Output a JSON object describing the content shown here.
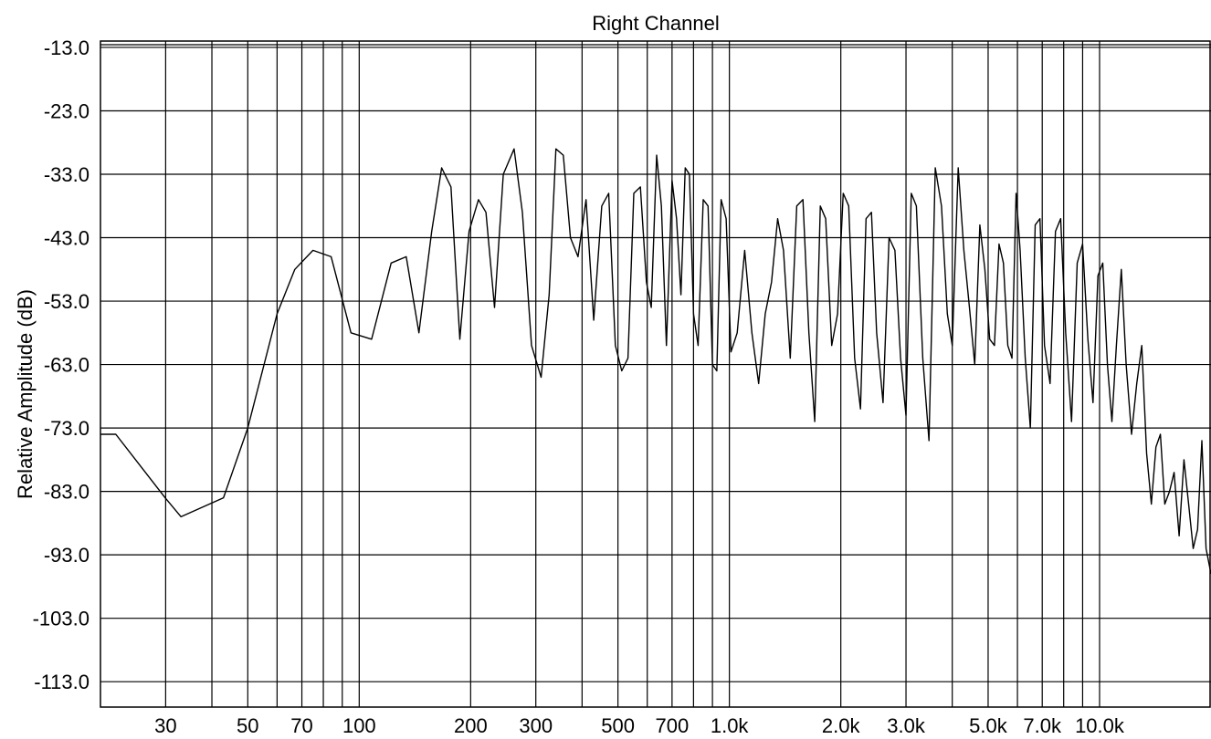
{
  "chart_data": {
    "type": "line",
    "title": "Right Channel",
    "ylabel": "Relative Amplitude (dB)",
    "xlabel": "",
    "xscale": "log",
    "xlim": [
      20,
      20000
    ],
    "ylim": [
      -117.0,
      -12.0
    ],
    "yticks": [
      -13.0,
      -23.0,
      -33.0,
      -43.0,
      -53.0,
      -63.0,
      -73.0,
      -83.0,
      -93.0,
      -103.0,
      -113.0
    ],
    "ytick_labels": [
      "-13.0",
      "-23.0",
      "-33.0",
      "-43.0",
      "-53.0",
      "-63.0",
      "-73.0",
      "-83.0",
      "-93.0",
      "-103.0",
      "-113.0"
    ],
    "xgrid": [
      30,
      40,
      50,
      60,
      70,
      80,
      90,
      100,
      200,
      300,
      400,
      500,
      600,
      700,
      800,
      900,
      1000,
      2000,
      3000,
      4000,
      5000,
      6000,
      7000,
      8000,
      9000,
      10000
    ],
    "xticks": [
      {
        "value": 30,
        "label": "30"
      },
      {
        "value": 50,
        "label": "50"
      },
      {
        "value": 70,
        "label": "70"
      },
      {
        "value": 100,
        "label": "100"
      },
      {
        "value": 200,
        "label": "200"
      },
      {
        "value": 300,
        "label": "300"
      },
      {
        "value": 500,
        "label": "500"
      },
      {
        "value": 700,
        "label": "700"
      },
      {
        "value": 1000,
        "label": "1.0k"
      },
      {
        "value": 2000,
        "label": "2.0k"
      },
      {
        "value": 3000,
        "label": "3.0k"
      },
      {
        "value": 5000,
        "label": "5.0k"
      },
      {
        "value": 7000,
        "label": "7.0k"
      },
      {
        "value": 10000,
        "label": "10.0k"
      }
    ],
    "grid": true,
    "series": [
      {
        "x": [
          20,
          22,
          29.9,
          33,
          43,
          50,
          60,
          67,
          75,
          84,
          95,
          108,
          122,
          134,
          145,
          157,
          167,
          177,
          187,
          198,
          210,
          220,
          232,
          245,
          262,
          276,
          292,
          310,
          326,
          340,
          356,
          372,
          390,
          410,
          430,
          452,
          472,
          492,
          512,
          532,
          552,
          575,
          597,
          615,
          636,
          655,
          676,
          700,
          720,
          740,
          760,
          780,
          800,
          823,
          850,
          876,
          900,
          925,
          950,
          980,
          1010,
          1050,
          1100,
          1150,
          1200,
          1250,
          1300,
          1350,
          1400,
          1460,
          1520,
          1580,
          1640,
          1700,
          1760,
          1820,
          1890,
          1960,
          2030,
          2100,
          2180,
          2260,
          2340,
          2420,
          2500,
          2600,
          2700,
          2800,
          2900,
          3000,
          3100,
          3200,
          3330,
          3460,
          3600,
          3740,
          3880,
          4000,
          4150,
          4300,
          4450,
          4600,
          4750,
          4900,
          5050,
          5200,
          5350,
          5500,
          5650,
          5800,
          5950,
          6100,
          6300,
          6500,
          6700,
          6900,
          7100,
          7350,
          7600,
          7850,
          8100,
          8400,
          8700,
          9000,
          9300,
          9600,
          9900,
          10200,
          10500,
          10800,
          11100,
          11450,
          11800,
          12200,
          12600,
          13000,
          13400,
          13800,
          14200,
          14600,
          15000,
          15450,
          15900,
          16400,
          16900,
          17400,
          17900,
          18400,
          18900,
          19400,
          20000
        ],
        "y": [
          -74,
          -74,
          -84,
          -87,
          -84,
          -73,
          -55,
          -48,
          -45,
          -46,
          -58,
          -59,
          -47,
          -46,
          -58,
          -42,
          -32,
          -35,
          -59,
          -42,
          -37,
          -39,
          -54,
          -33,
          -29,
          -39,
          -60,
          -65,
          -52,
          -29,
          -30,
          -43,
          -46,
          -37,
          -56,
          -38,
          -36,
          -60,
          -64,
          -62,
          -36,
          -35,
          -50,
          -54,
          -30,
          -38,
          -60,
          -34,
          -40,
          -52,
          -32,
          -33,
          -55,
          -60,
          -37,
          -38,
          -63,
          -64,
          -37,
          -40,
          -61,
          -58,
          -45,
          -58,
          -66,
          -55,
          -50,
          -40,
          -45,
          -62,
          -38,
          -37,
          -58,
          -72,
          -38,
          -40,
          -60,
          -55,
          -36,
          -38,
          -62,
          -70,
          -40,
          -39,
          -58,
          -69,
          -43,
          -45,
          -62,
          -71,
          -36,
          -38,
          -62,
          -75,
          -32,
          -38,
          -55,
          -60,
          -32,
          -45,
          -54,
          -63,
          -41,
          -48,
          -59,
          -60,
          -44,
          -47,
          -60,
          -62,
          -36,
          -45,
          -62,
          -73,
          -41,
          -40,
          -60,
          -66,
          -42,
          -40,
          -58,
          -72,
          -47,
          -44,
          -59,
          -69,
          -49,
          -47,
          -63,
          -72,
          -60,
          -48,
          -63,
          -74,
          -66,
          -60,
          -77,
          -85,
          -76,
          -74,
          -85,
          -83,
          -80,
          -90,
          -78,
          -85,
          -92,
          -89,
          -75,
          -92,
          -96
        ]
      }
    ]
  }
}
